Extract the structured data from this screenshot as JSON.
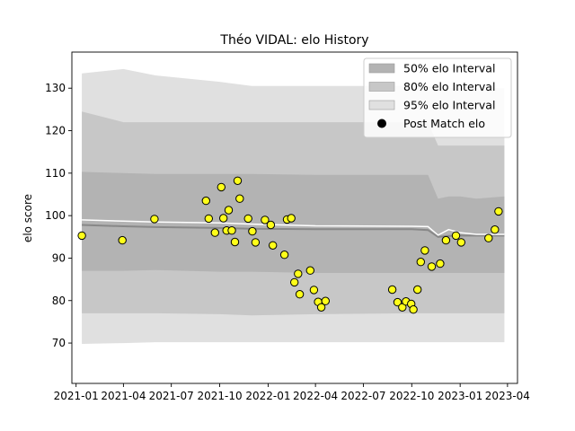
{
  "chart_data": {
    "type": "line",
    "title": "Théo VIDAL: elo History",
    "xlabel": "",
    "ylabel": "elo score",
    "xlim": [
      "2020-12-24",
      "2023-04-20"
    ],
    "ylim": [
      60.5,
      138.5
    ],
    "x_ticks": [
      "2021-01",
      "2021-04",
      "2021-07",
      "2021-10",
      "2022-01",
      "2022-04",
      "2022-07",
      "2022-10",
      "2023-01",
      "2023-04"
    ],
    "x_tick_dates": [
      "2021-01-01",
      "2021-04-01",
      "2021-07-01",
      "2021-10-01",
      "2022-01-01",
      "2022-04-01",
      "2022-07-01",
      "2022-10-01",
      "2023-01-01",
      "2023-04-01"
    ],
    "y_ticks": [
      70,
      80,
      90,
      100,
      110,
      120,
      130
    ],
    "grid": false,
    "legend_position": "top-right",
    "legend": [
      {
        "label": "50% elo Interval",
        "kind": "patch",
        "color": "#b3b3b3"
      },
      {
        "label": "80% elo Interval",
        "kind": "patch",
        "color": "#c7c7c7"
      },
      {
        "label": "95% elo Interval",
        "kind": "patch",
        "color": "#e0e0e0"
      },
      {
        "label": "Post Match elo",
        "kind": "marker",
        "color": "#000000"
      }
    ],
    "colors": {
      "band50": "#b3b3b3",
      "band80": "#c7c7c7",
      "band95": "#e0e0e0",
      "mean_line": "#ffffff",
      "median_line": "#888888",
      "marker_fill": "#ffff1a",
      "marker_edge": "#000000"
    },
    "rating_series": {
      "dates": [
        "2021-01-12",
        "2021-04-01",
        "2021-06-01",
        "2021-10-01",
        "2021-12-01",
        "2022-04-01",
        "2022-10-01",
        "2022-11-01",
        "2022-11-20",
        "2022-12-10",
        "2023-01-01",
        "2023-02-01",
        "2023-03-26"
      ],
      "mean": [
        99.0,
        98.7,
        98.5,
        98.3,
        98.0,
        97.6,
        97.5,
        97.4,
        95.4,
        96.7,
        96.0,
        95.6,
        95.6
      ],
      "median": [
        97.8,
        97.5,
        97.3,
        97.1,
        96.9,
        96.8,
        96.8,
        96.6,
        95.0,
        95.2,
        95.3,
        95.3,
        95.3
      ],
      "band50_lower": [
        87.0,
        87.0,
        87.2,
        86.8,
        86.8,
        86.5,
        86.5,
        86.5,
        86.5,
        86.5,
        86.5,
        86.5,
        86.5
      ],
      "band50_upper": [
        110.3,
        110.0,
        109.8,
        109.8,
        109.8,
        109.6,
        109.6,
        109.6,
        104.0,
        104.5,
        104.5,
        104.0,
        104.5
      ],
      "band80_lower": [
        77.0,
        77.0,
        77.0,
        76.8,
        76.5,
        76.8,
        77.0,
        77.0,
        77.0,
        77.0,
        77.0,
        77.0,
        77.0
      ],
      "band80_upper": [
        124.5,
        122.0,
        122.0,
        122.0,
        122.0,
        122.0,
        122.0,
        122.0,
        116.5,
        116.5,
        116.5,
        116.5,
        116.5
      ],
      "band95_lower": [
        69.8,
        70.0,
        70.2,
        70.2,
        70.2,
        70.2,
        70.2,
        70.2,
        70.2,
        70.2,
        70.2,
        70.2,
        70.2
      ],
      "band95_upper": [
        133.5,
        134.5,
        133.0,
        131.5,
        130.5,
        130.5,
        130.5,
        130.5,
        130.0,
        130.0,
        130.0,
        130.0,
        130.0
      ]
    },
    "post_match_elo": {
      "dates": [
        "2021-01-12",
        "2021-03-30",
        "2021-05-30",
        "2021-09-05",
        "2021-09-10",
        "2021-09-22",
        "2021-10-04",
        "2021-10-08",
        "2021-10-14",
        "2021-10-18",
        "2021-10-24",
        "2021-10-30",
        "2021-11-04",
        "2021-11-08",
        "2021-11-24",
        "2021-12-02",
        "2021-12-08",
        "2021-12-26",
        "2022-01-06",
        "2022-01-10",
        "2022-02-01",
        "2022-02-06",
        "2022-02-14",
        "2022-02-20",
        "2022-02-27",
        "2022-03-02",
        "2022-03-22",
        "2022-03-29",
        "2022-04-06",
        "2022-04-12",
        "2022-04-20",
        "2022-08-25",
        "2022-09-04",
        "2022-09-13",
        "2022-09-20",
        "2022-09-30",
        "2022-10-04",
        "2022-10-12",
        "2022-10-18",
        "2022-10-26",
        "2022-11-08",
        "2022-11-24",
        "2022-12-05",
        "2022-12-24",
        "2023-01-03",
        "2023-02-24",
        "2023-03-08",
        "2023-03-15"
      ],
      "values": [
        95.3,
        94.2,
        99.2,
        103.5,
        99.3,
        96.0,
        106.7,
        99.4,
        96.5,
        101.3,
        96.5,
        93.8,
        108.2,
        104.0,
        99.3,
        96.3,
        93.7,
        99.0,
        97.8,
        93.0,
        90.8,
        99.1,
        99.4,
        84.3,
        86.3,
        81.5,
        87.1,
        82.5,
        79.7,
        78.4,
        79.9,
        82.6,
        79.6,
        78.4,
        79.8,
        79.2,
        77.9,
        82.6,
        89.1,
        91.8,
        88.0,
        88.7,
        94.2,
        95.3,
        93.7,
        94.7,
        96.7,
        101.0
      ]
    }
  }
}
